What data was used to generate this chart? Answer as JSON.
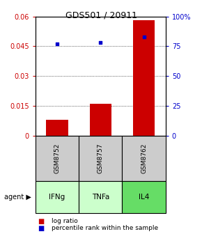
{
  "title": "GDS501 / 20911",
  "samples": [
    "GSM8752",
    "GSM8757",
    "GSM8762"
  ],
  "agents": [
    "IFNg",
    "TNFa",
    "IL4"
  ],
  "agent_colors": [
    "#ccffcc",
    "#ccffcc",
    "#66dd66"
  ],
  "log_ratio": [
    0.008,
    0.016,
    0.058
  ],
  "percentile_rank_pct": [
    77.0,
    78.0,
    83.0
  ],
  "ylim_left": [
    0,
    0.06
  ],
  "ylim_right": [
    0,
    100
  ],
  "yticks_left": [
    0,
    0.015,
    0.03,
    0.045,
    0.06
  ],
  "ytick_labels_left": [
    "0",
    "0.015",
    "0.03",
    "0.045",
    "0.06"
  ],
  "yticks_right": [
    0,
    25,
    50,
    75,
    100
  ],
  "ytick_labels_right": [
    "0",
    "25",
    "50",
    "75",
    "100%"
  ],
  "bar_color": "#cc0000",
  "square_color": "#0000cc",
  "sample_bg_color": "#cccccc",
  "bar_width": 0.5,
  "legend_log_label": "log ratio",
  "legend_pct_label": "percentile rank within the sample",
  "agent_label": "agent"
}
